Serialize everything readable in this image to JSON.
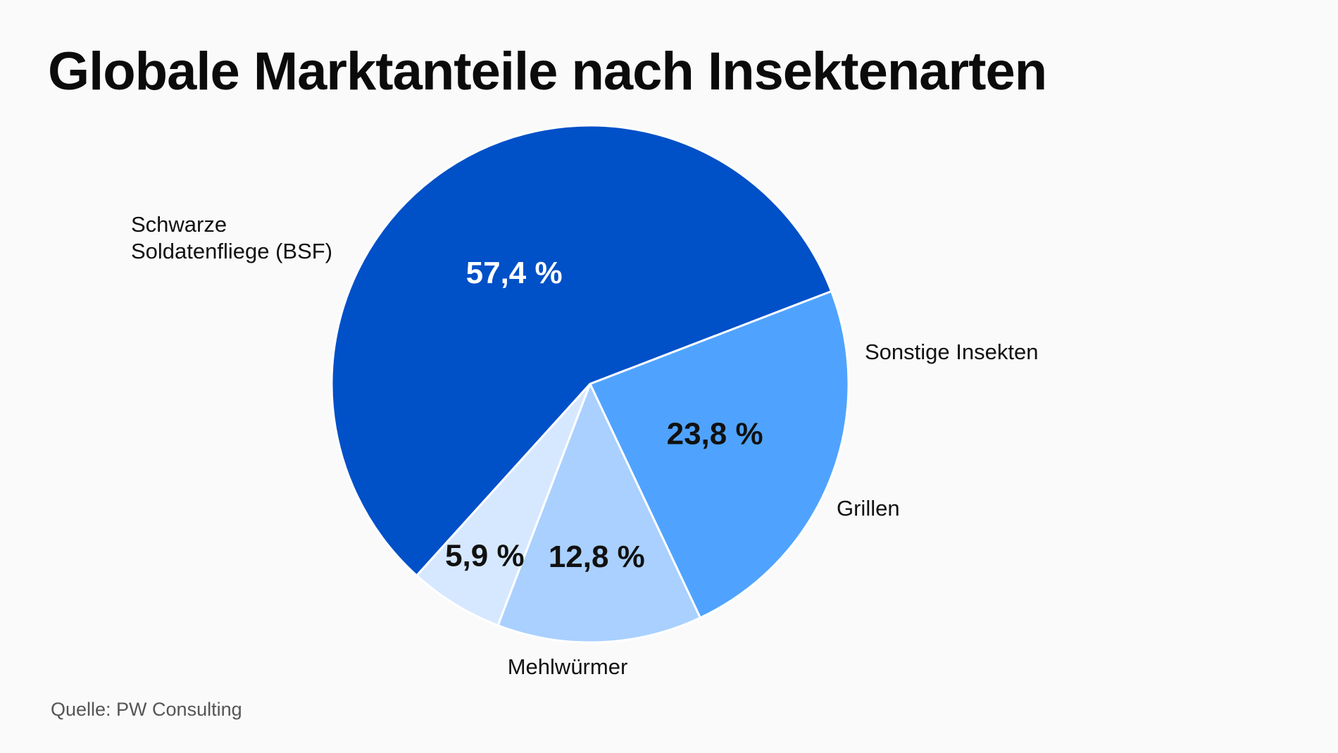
{
  "chart_data": {
    "type": "pie",
    "title": "Globale Marktanteile nach Insektenarten",
    "slices": [
      {
        "label": "Schwarze Soldatenfliege (BSF)",
        "label_lines": [
          "Schwarze",
          "Soldatenfliege (BSF)"
        ],
        "value": 57.4,
        "value_label": "57,4 %",
        "color": "#0050c8",
        "value_text_color": "#ffffff"
      },
      {
        "label": "Sonstige Insekten",
        "label_lines": [
          "Sonstige Insekten"
        ],
        "value": 5.9,
        "value_label": "5,9 %",
        "color": "#d6e8ff",
        "value_text_color": "#111111"
      },
      {
        "label": "Grillen",
        "label_lines": [
          "Grillen"
        ],
        "value": 12.8,
        "value_label": "12,8 %",
        "color": "#a9d0ff",
        "value_text_color": "#111111"
      },
      {
        "label": "Mehlwürmer",
        "label_lines": [
          "Mehlwürmer"
        ],
        "value": 23.8,
        "value_label": "23,8 %",
        "color": "#4fa3ff",
        "value_text_color": "#111111"
      }
    ],
    "legend": "none",
    "source": "Quelle: PW Consulting"
  }
}
